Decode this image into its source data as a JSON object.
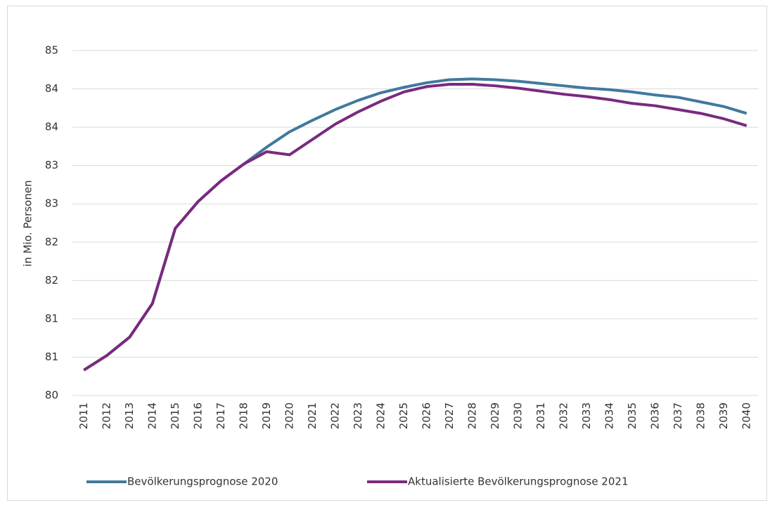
{
  "chart_data": {
    "type": "line",
    "y_label": "in Mio. Personen",
    "categories": [
      "2011",
      "2012",
      "2013",
      "2014",
      "2015",
      "2016",
      "2017",
      "2018",
      "2019",
      "2020",
      "2021",
      "2022",
      "2023",
      "2024",
      "2025",
      "2026",
      "2027",
      "2028",
      "2029",
      "2030",
      "2031",
      "2032",
      "2033",
      "2034",
      "2035",
      "2036",
      "2037",
      "2038",
      "2039",
      "2040"
    ],
    "series": [
      {
        "name": "Bevölkerungsprognose 2020",
        "color": "#41799e",
        "values": [
          80.33,
          80.52,
          80.76,
          81.2,
          82.18,
          82.53,
          82.8,
          83.02,
          83.24,
          83.44,
          83.59,
          83.73,
          83.85,
          83.95,
          84.02,
          84.08,
          84.12,
          84.13,
          84.12,
          84.1,
          84.07,
          84.04,
          84.01,
          83.99,
          83.96,
          83.92,
          83.89,
          83.83,
          83.77,
          83.68
        ]
      },
      {
        "name": "Aktualisierte Bevölkerungsprognose 2021",
        "color": "#7a2a7e",
        "values": [
          80.33,
          80.52,
          80.76,
          81.2,
          82.18,
          82.53,
          82.8,
          83.02,
          83.18,
          83.14,
          83.34,
          83.54,
          83.7,
          83.84,
          83.96,
          84.03,
          84.06,
          84.06,
          84.04,
          84.01,
          83.97,
          83.93,
          83.9,
          83.86,
          83.81,
          83.78,
          83.73,
          83.68,
          83.61,
          83.52
        ]
      }
    ],
    "ylim": [
      80,
      84.5
    ],
    "yticks": [
      80,
      {
        "value": 80.5,
        "label": "81"
      },
      81,
      {
        "value": 81.5,
        "label": "82"
      },
      82,
      {
        "value": 82.5,
        "label": "83"
      },
      83,
      {
        "value": 83.5,
        "label": "84"
      },
      84,
      {
        "value": 84.5,
        "label": "85"
      }
    ],
    "grid": true,
    "legend": "bottom"
  }
}
